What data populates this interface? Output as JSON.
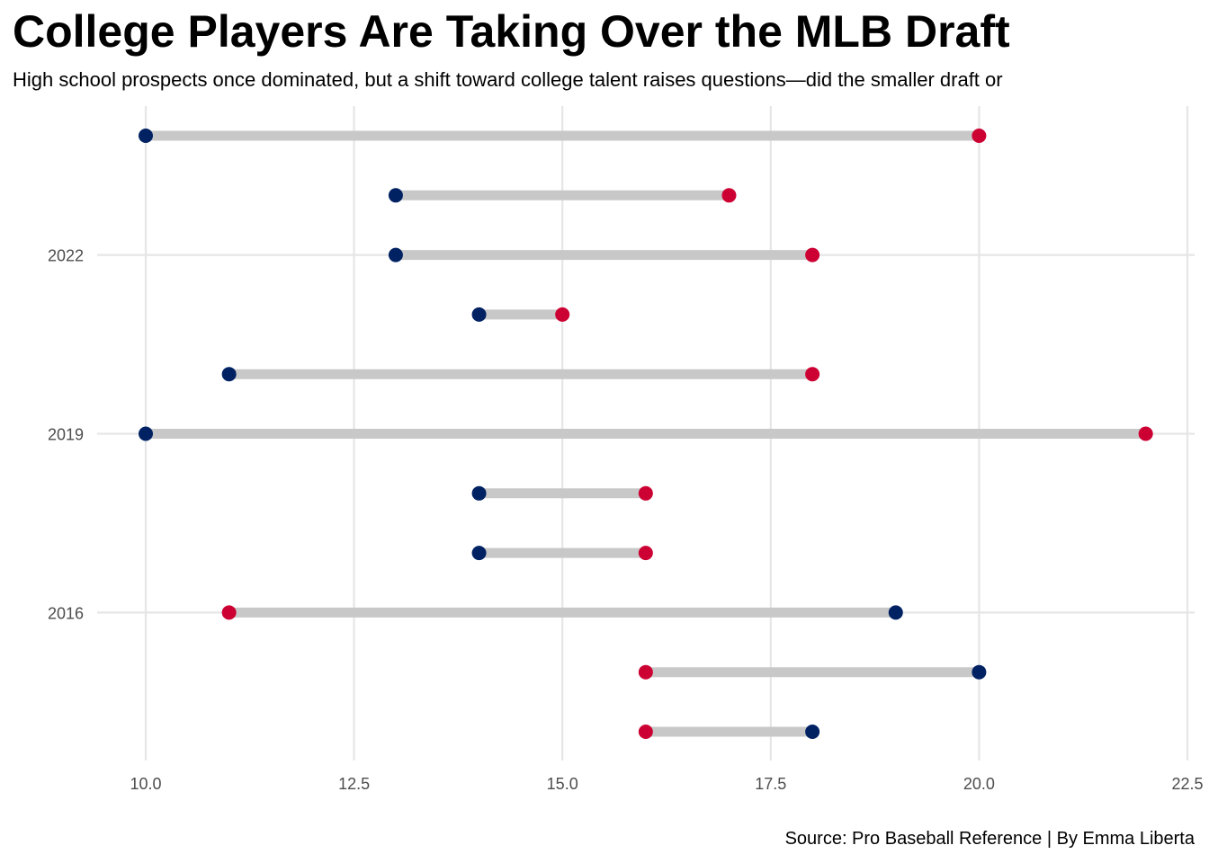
{
  "chart_data": {
    "type": "dumbbell",
    "title": "College Players Are Taking Over the MLB Draft",
    "subtitle": "High school prospects once dominated, but a shift toward college talent raises questions—did the smaller draft or",
    "caption": "Source: Pro Baseball Reference | By Emma Liberta",
    "xlabel": "",
    "ylabel": "",
    "xlim": [
      9.5,
      22.5
    ],
    "x_ticks": [
      "10.0",
      "12.5",
      "15.0",
      "17.5",
      "20.0",
      "22.5"
    ],
    "x_tick_values": [
      10,
      12.5,
      15,
      17.5,
      20,
      22.5
    ],
    "y_tick_labels": [
      {
        "label": "2022",
        "row": 2022
      },
      {
        "label": "2019",
        "row": 2019
      },
      {
        "label": "2016",
        "row": 2016
      }
    ],
    "y_range": [
      2014,
      2024
    ],
    "grid": true,
    "rows": [
      {
        "row": 2024,
        "blue": 10,
        "red": 20
      },
      {
        "row": 2023,
        "blue": 13,
        "red": 17
      },
      {
        "row": 2022,
        "blue": 13,
        "red": 18
      },
      {
        "row": 2021,
        "blue": 14,
        "red": 15
      },
      {
        "row": 2020,
        "blue": 11,
        "red": 18
      },
      {
        "row": 2019,
        "blue": 10,
        "red": 22
      },
      {
        "row": 2018,
        "blue": 14,
        "red": 16
      },
      {
        "row": 2017,
        "blue": 14,
        "red": 16
      },
      {
        "row": 2016,
        "blue": 19,
        "red": 11
      },
      {
        "row": 2015,
        "blue": 20,
        "red": 16
      },
      {
        "row": 2014,
        "blue": 18,
        "red": 16
      }
    ],
    "colors": {
      "blue": "#002263",
      "red": "#cc0033",
      "segment": "#c8c8c8",
      "grid": "#e6e6e6"
    }
  }
}
